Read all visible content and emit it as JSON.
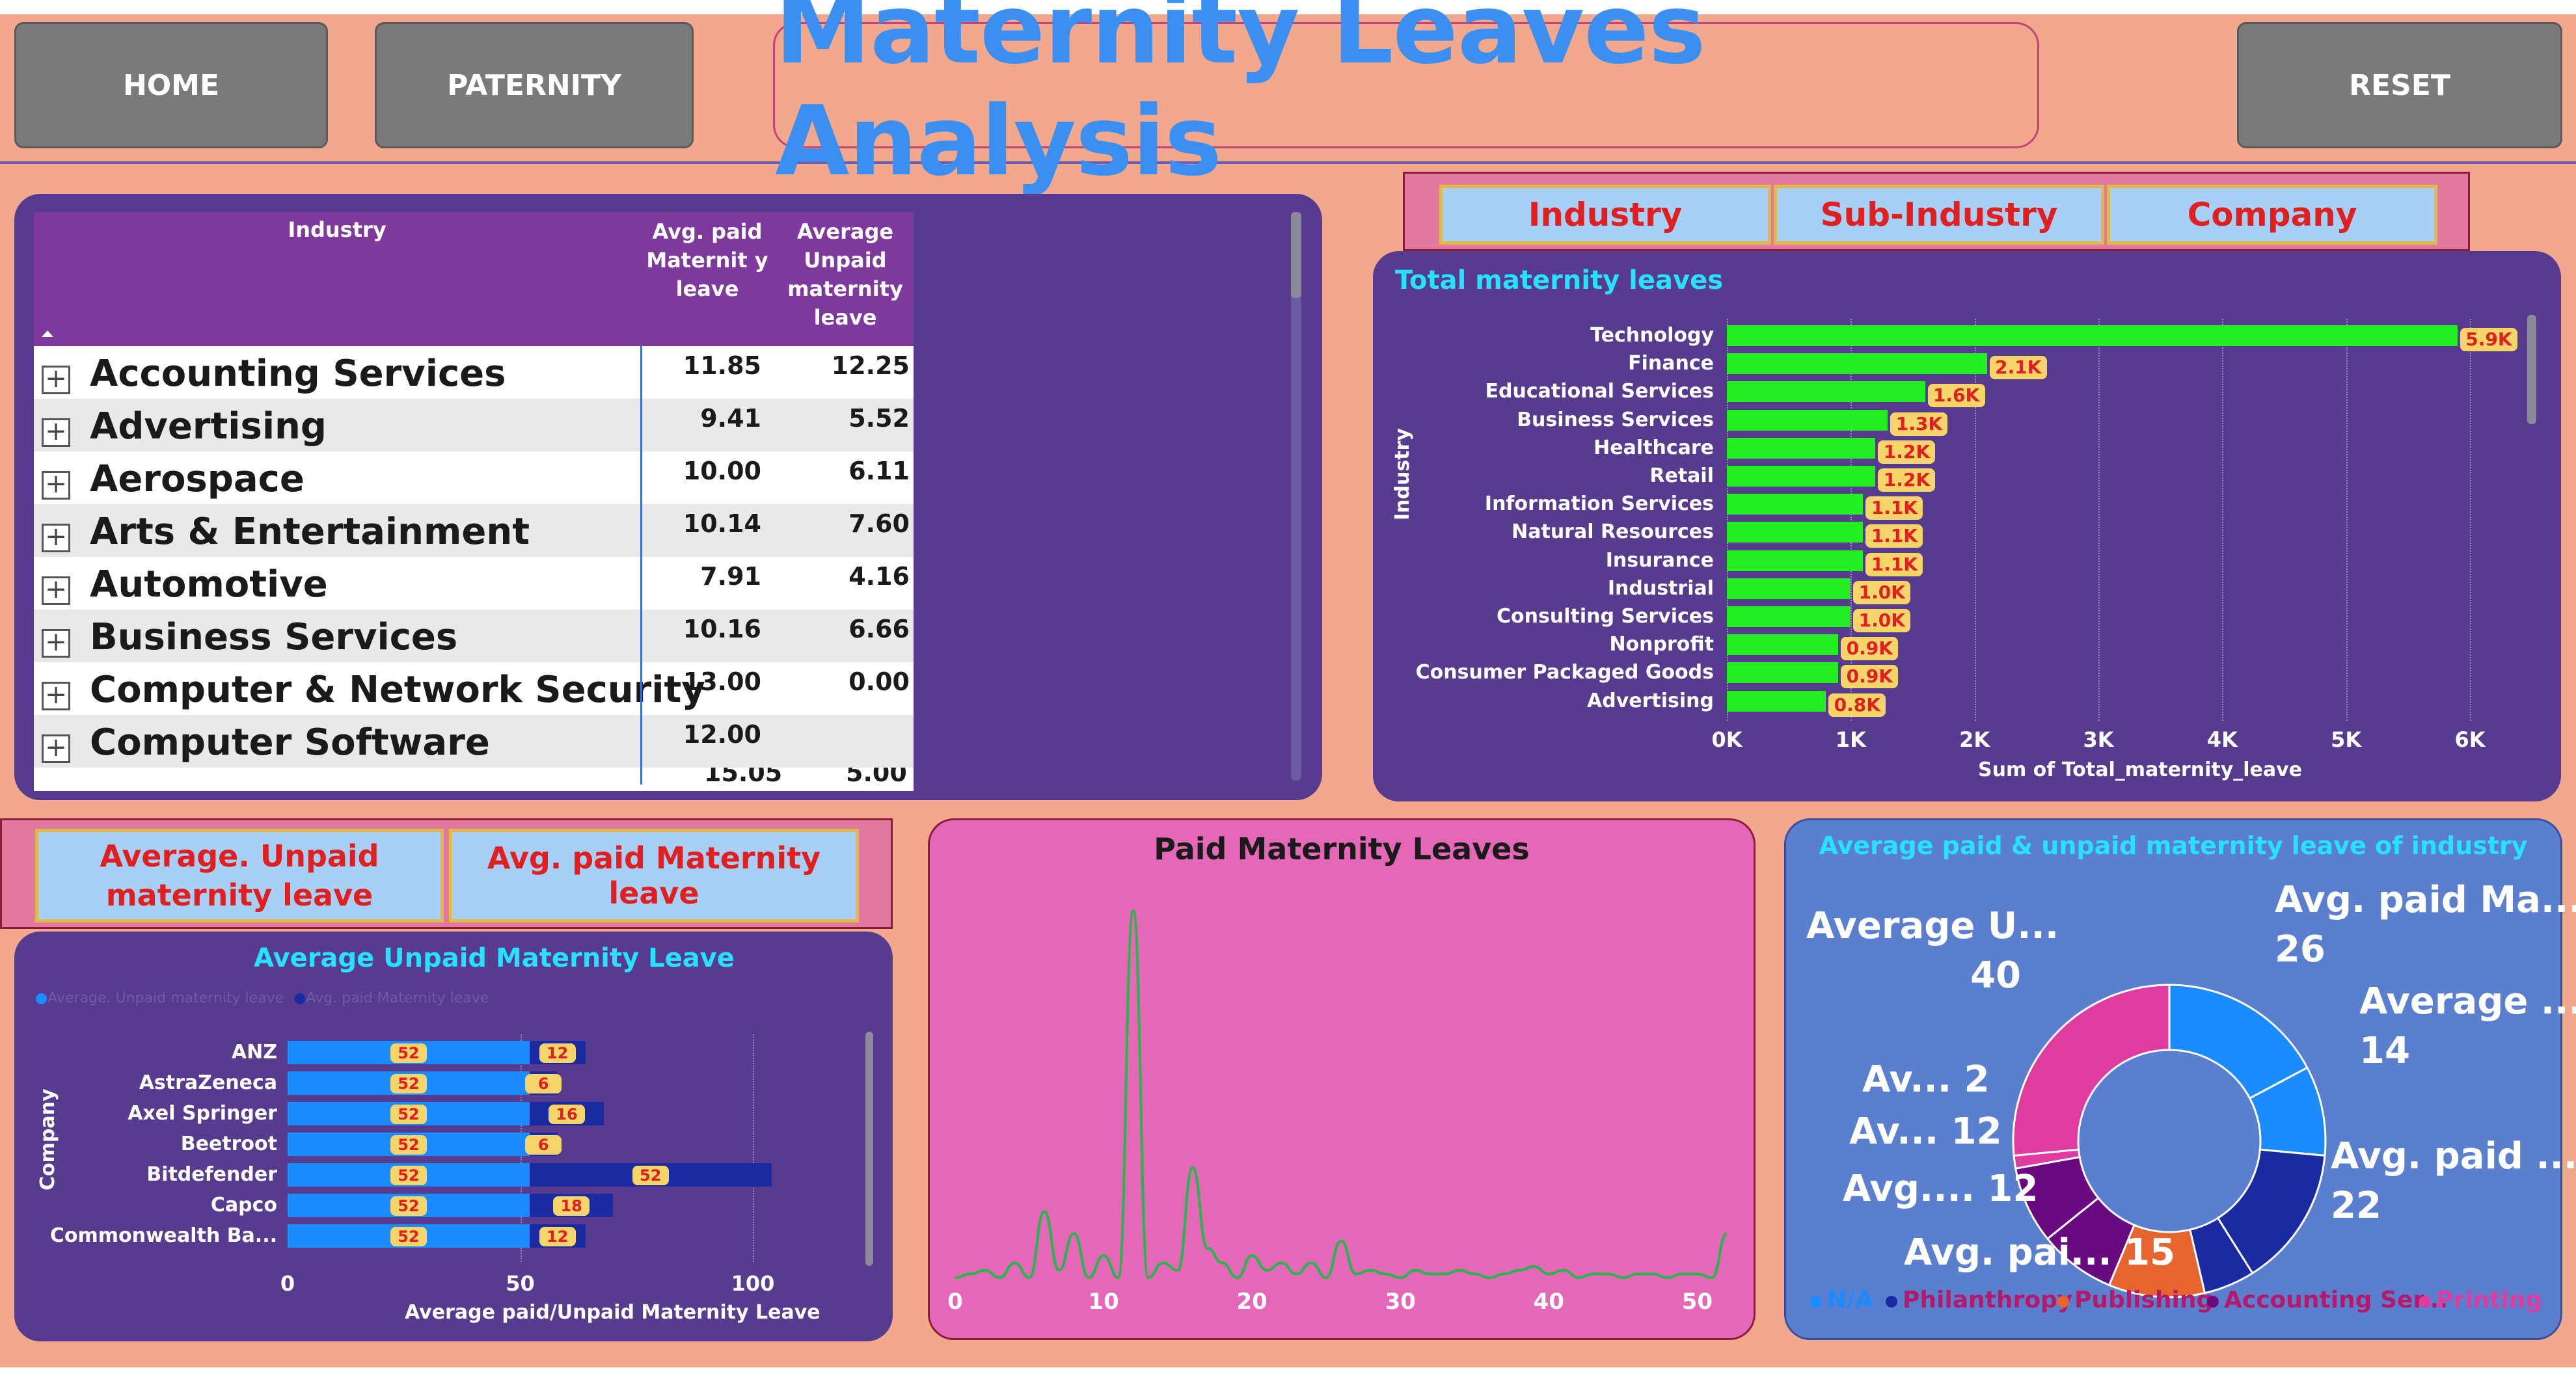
{
  "nav": {
    "home": "HOME",
    "paternity": "PATERNITY",
    "reset": "RESET"
  },
  "title": "Maternity Leaves Analysis",
  "matrix": {
    "headers": {
      "industry": "Industry",
      "avg_paid": "Avg. paid Maternit y leave",
      "avg_unpaid": "Average Unpaid maternity leave"
    },
    "rows": [
      {
        "name": "Accounting Services",
        "paid": "11.85",
        "unpaid": "12.25"
      },
      {
        "name": "Advertising",
        "paid": "9.41",
        "unpaid": "5.52"
      },
      {
        "name": "Aerospace",
        "paid": "10.00",
        "unpaid": "6.11"
      },
      {
        "name": "Arts & Entertainment",
        "paid": "10.14",
        "unpaid": "7.60"
      },
      {
        "name": "Automotive",
        "paid": "7.91",
        "unpaid": "4.16"
      },
      {
        "name": "Business Services",
        "paid": "10.16",
        "unpaid": "6.66"
      },
      {
        "name": "Computer & Network Security",
        "paid": "13.00",
        "unpaid": "0.00"
      },
      {
        "name": "Computer Software",
        "paid": "12.00",
        "unpaid": ""
      }
    ],
    "partial_row": {
      "paid": "15.05",
      "unpaid": "5.00"
    }
  },
  "hierarchy_slicer": {
    "industry": "Industry",
    "sub_industry": "Sub-Industry",
    "company": "Company"
  },
  "measure_slicer": {
    "unpaid": "Average. Unpaid maternity leave",
    "paid": "Avg. paid Maternity leave"
  },
  "colors": {
    "background": "#f2a88c",
    "panel": "#563b8e",
    "green_bar": "#22ee22",
    "badge": "#f5d46a",
    "title_blue": "#3b8ff0",
    "cyan_title": "#28e0ff",
    "pink_panel": "#e567b8",
    "donut_panel": "#5b7fcf"
  },
  "chart_data": [
    {
      "type": "bar",
      "title": "Total maternity leaves",
      "ylabel": "Industry",
      "xlabel": "Sum of Total_maternity_leave",
      "categories": [
        "Technology",
        "Finance",
        "Educational Services",
        "Business Services",
        "Healthcare",
        "Retail",
        "Information Services",
        "Natural Resources",
        "Insurance",
        "Industrial",
        "Consulting Services",
        "Nonprofit",
        "Consumer Packaged Goods",
        "Advertising"
      ],
      "values": [
        5900,
        2100,
        1600,
        1300,
        1200,
        1200,
        1100,
        1100,
        1100,
        1000,
        1000,
        900,
        900,
        800
      ],
      "data_labels": [
        "5.9K",
        "2.1K",
        "1.6K",
        "1.3K",
        "1.2K",
        "1.2K",
        "1.1K",
        "1.1K",
        "1.1K",
        "1.0K",
        "1.0K",
        "0.9K",
        "0.9K",
        "0.8K"
      ],
      "xticks": [
        "0K",
        "1K",
        "2K",
        "3K",
        "4K",
        "5K",
        "6K"
      ],
      "xlim": [
        0,
        6000
      ]
    },
    {
      "type": "bar",
      "title": "Average Unpaid Maternity Leave",
      "ylabel": "Company",
      "xlabel": "Average paid/Unpaid Maternity Leave",
      "legend": [
        "Average. Unpaid maternity leave",
        "Avg. paid Maternity leave"
      ],
      "categories": [
        "ANZ",
        "AstraZeneca",
        "Axel Springer",
        "Beetroot",
        "Bitdefender",
        "Capco",
        "Commonwealth Ba..."
      ],
      "series": [
        {
          "name": "Average. Unpaid maternity leave",
          "values": [
            52,
            52,
            52,
            52,
            52,
            52,
            52
          ]
        },
        {
          "name": "Avg. paid Maternity leave",
          "values": [
            12,
            6,
            16,
            6,
            52,
            18,
            12
          ]
        }
      ],
      "xticks": [
        "0",
        "50",
        "100"
      ],
      "xlim": [
        0,
        110
      ]
    },
    {
      "type": "line",
      "title": "Paid Maternity Leaves",
      "xticks": [
        "0",
        "10",
        "20",
        "30",
        "40",
        "50"
      ],
      "xlim": [
        0,
        52
      ],
      "x": [
        0,
        1,
        2,
        3,
        4,
        5,
        6,
        7,
        8,
        9,
        10,
        11,
        12,
        13,
        14,
        15,
        16,
        17,
        18,
        19,
        20,
        21,
        22,
        23,
        24,
        25,
        26,
        27,
        28,
        29,
        30,
        31,
        32,
        33,
        34,
        35,
        36,
        37,
        38,
        39,
        40,
        41,
        42,
        43,
        44,
        45,
        46,
        47,
        48,
        49,
        50,
        51,
        52
      ],
      "y": [
        0,
        1,
        2,
        0,
        4,
        0,
        18,
        2,
        12,
        0,
        6,
        0,
        100,
        0,
        4,
        2,
        30,
        8,
        4,
        0,
        6,
        2,
        4,
        1,
        4,
        0,
        10,
        1,
        2,
        1,
        0,
        2,
        1,
        1,
        2,
        1,
        0,
        1,
        2,
        3,
        1,
        2,
        0,
        1,
        1,
        0,
        1,
        1,
        0,
        1,
        1,
        0,
        12
      ]
    },
    {
      "type": "pie",
      "title": "Average paid & unpaid maternity leave of industry",
      "legend": [
        "N/A",
        "Philanthropy",
        "Publishing",
        "Accounting Ser...",
        "Printing"
      ],
      "slices": [
        {
          "label": "Avg. paid Ma...",
          "value": 26,
          "color": "#1a8cff"
        },
        {
          "label": "Average ...",
          "value": 14,
          "color": "#1a8cff"
        },
        {
          "label": "Avg. paid ...",
          "value": 22,
          "color": "#1a2aa0"
        },
        {
          "label": "",
          "value": 8,
          "color": "#1a2aa0"
        },
        {
          "label": "Avg. pai...",
          "value": 15,
          "color": "#e8642e"
        },
        {
          "label": "Avg....",
          "value": 12,
          "color": "#6a0a80"
        },
        {
          "label": "Av...",
          "value": 12,
          "color": "#6a0a80"
        },
        {
          "label": "Av...",
          "value": 2,
          "color": "#e03ca0"
        },
        {
          "label": "Average U...",
          "value": 40,
          "color": "#e03ca0"
        }
      ],
      "label_values": {
        "avg_paid_ma": "26",
        "average_a": "14",
        "avg_paid_b": "22",
        "avg_pai": "15",
        "avg_dots": "12",
        "av_12": "12",
        "av_2": "2",
        "average_u": "40"
      }
    }
  ]
}
